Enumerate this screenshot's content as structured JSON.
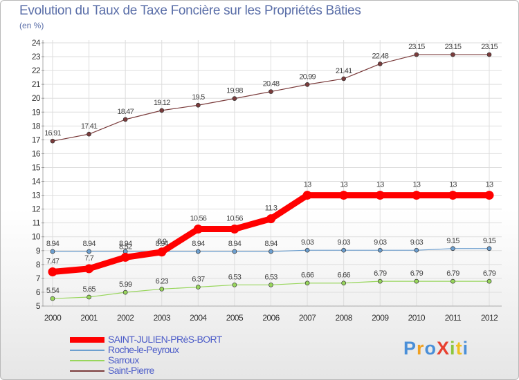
{
  "title": "Evolution du Taux de Taxe Foncière sur les Propriétés Bâties",
  "unit_label": "(en %)",
  "logo_text": "ProXiti",
  "chart_data": {
    "type": "line",
    "title": "Evolution du Taux de Taxe Foncière sur les Propriétés Bâties",
    "ylabel": "(en %)",
    "xlabel": "",
    "ylim": [
      5,
      24
    ],
    "yticks": [
      5,
      6,
      7,
      8,
      9,
      10,
      11,
      12,
      13,
      14,
      15,
      16,
      17,
      18,
      19,
      20,
      21,
      22,
      23,
      24
    ],
    "categories": [
      "2000",
      "2001",
      "2002",
      "2003",
      "2004",
      "2005",
      "2006",
      "2007",
      "2008",
      "2009",
      "2010",
      "2011",
      "2012"
    ],
    "series": [
      {
        "name": "SAINT-JULIEN-PRèS-BORT",
        "color": "#ff0000",
        "values": [
          7.47,
          7.7,
          8.52,
          8.9,
          10.56,
          10.56,
          11.3,
          13,
          13,
          13,
          13,
          13,
          13
        ],
        "labels": [
          "7.47",
          "7.7",
          "8.52",
          "8.9",
          "10.56",
          "10.56",
          "11.3",
          "13",
          "13",
          "13",
          "13",
          "13",
          "13"
        ]
      },
      {
        "name": "Roche-le-Peyroux",
        "color": "#6d9fcf",
        "values": [
          8.94,
          8.94,
          8.94,
          8.94,
          8.94,
          8.94,
          8.94,
          9.03,
          9.03,
          9.03,
          9.03,
          9.15,
          9.15
        ],
        "labels": [
          "8.94",
          "8.94",
          "8.94",
          "8.94",
          "8.94",
          "8.94",
          "8.94",
          "9.03",
          "9.03",
          "9.03",
          "9.03",
          "9.15",
          "9.15"
        ]
      },
      {
        "name": "Sarroux",
        "color": "#98d65c",
        "values": [
          5.54,
          5.65,
          5.99,
          6.23,
          6.37,
          6.53,
          6.53,
          6.66,
          6.66,
          6.79,
          6.79,
          6.79,
          6.79
        ],
        "labels": [
          "5.54",
          "5.65",
          "5.99",
          "6.23",
          "6.37",
          "6.53",
          "6.53",
          "6.66",
          "6.66",
          "6.79",
          "6.79",
          "6.79",
          "6.79"
        ]
      },
      {
        "name": "Saint-Pierre",
        "color": "#7a3b3b",
        "values": [
          16.91,
          17.41,
          18.47,
          19.12,
          19.5,
          19.98,
          20.48,
          20.99,
          21.41,
          22.48,
          23.15,
          23.15,
          23.15
        ],
        "labels": [
          "16.91",
          "17.41",
          "18.47",
          "19.12",
          "19.5",
          "19.98",
          "20.48",
          "20.99",
          "21.41",
          "22.48",
          "23.15",
          "23.15",
          "23.15"
        ]
      }
    ],
    "legend_position": "bottom-left"
  }
}
